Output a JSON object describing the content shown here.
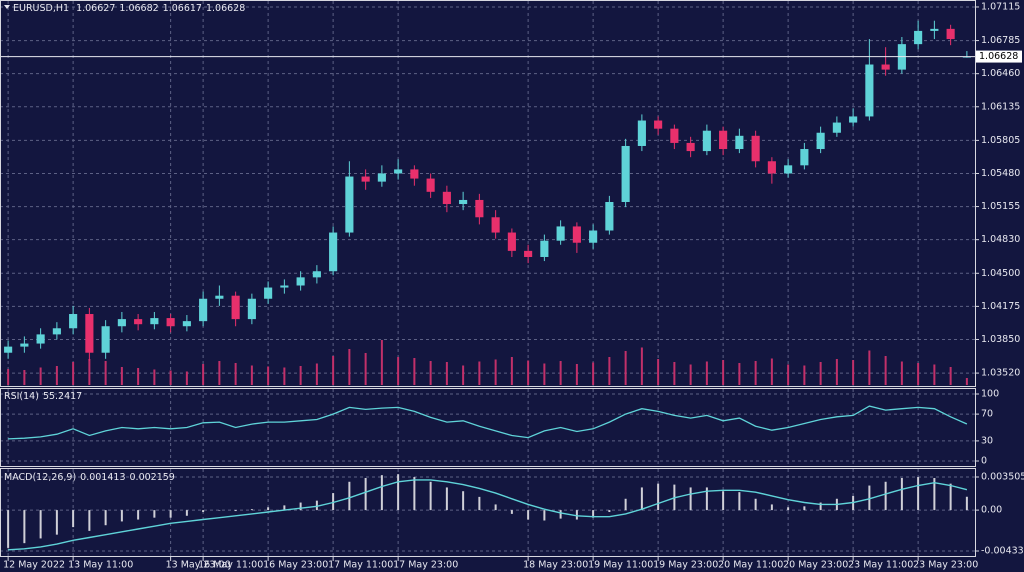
{
  "chart_data": {
    "type": "candlestick",
    "symbol": "EURUSD,H1",
    "up_color": "#5fd3d8",
    "down_color": "#e8306c",
    "volume_color": "#c2306a",
    "grid": true,
    "xlim": [
      -0.5,
      59.5
    ],
    "xticks": [
      {
        "value": 0,
        "label": "12 May 2022"
      },
      {
        "value": 4,
        "label": "13 May 11:00"
      },
      {
        "value": 10,
        "label": "13 May 23:00"
      },
      {
        "value": 12,
        "label": "16 May 11:00"
      },
      {
        "value": 16,
        "label": "16 May 23:00"
      },
      {
        "value": 20,
        "label": "17 May 11:00"
      },
      {
        "value": 24,
        "label": "17 May 23:00"
      },
      {
        "value": 32,
        "label": "18 May 23:00"
      },
      {
        "value": 36,
        "label": "19 May 11:00"
      },
      {
        "value": 40,
        "label": "19 May 23:00"
      },
      {
        "value": 44,
        "label": "20 May 11:00"
      },
      {
        "value": 48,
        "label": "20 May 23:00"
      },
      {
        "value": 52,
        "label": "23 May 11:00"
      },
      {
        "value": 56,
        "label": "23 May 23:00"
      }
    ],
    "ylim": [
      1.03403,
      1.07154
    ],
    "yticks": [
      1.07115,
      1.06785,
      {
        "value": 1.0646,
        "label": "1.06460"
      },
      1.06135,
      1.05805,
      {
        "value": 1.0548,
        "label": "1.05480"
      },
      1.05155,
      {
        "value": 1.0483,
        "label": "1.04830"
      },
      {
        "value": 1.045,
        "label": "1.04500"
      },
      1.04175,
      {
        "value": 1.0385,
        "label": "1.03850"
      },
      {
        "value": 1.0352,
        "label": "1.03520"
      }
    ],
    "candles": [
      [
        1.0372,
        1.0384,
        1.0366,
        1.0378
      ],
      [
        1.0378,
        1.0388,
        1.0372,
        1.0381
      ],
      [
        1.0381,
        1.0396,
        1.0376,
        1.039
      ],
      [
        1.039,
        1.0402,
        1.0385,
        1.0396
      ],
      [
        1.0396,
        1.0418,
        1.039,
        1.041
      ],
      [
        1.041,
        1.0416,
        1.0364,
        1.0372
      ],
      [
        1.0372,
        1.0404,
        1.0366,
        1.0398
      ],
      [
        1.0398,
        1.0412,
        1.0392,
        1.0405
      ],
      [
        1.0405,
        1.041,
        1.0394,
        1.04
      ],
      [
        1.04,
        1.0412,
        1.0395,
        1.0406
      ],
      [
        1.0406,
        1.041,
        1.0392,
        1.0398
      ],
      [
        1.0398,
        1.0409,
        1.0393,
        1.0403
      ],
      [
        1.0403,
        1.0432,
        1.0398,
        1.0425
      ],
      [
        1.0425,
        1.0438,
        1.0418,
        1.0428
      ],
      [
        1.0428,
        1.0432,
        1.0398,
        1.0405
      ],
      [
        1.0405,
        1.043,
        1.04,
        1.0425
      ],
      [
        1.0425,
        1.0442,
        1.042,
        1.0436
      ],
      [
        1.0436,
        1.0444,
        1.043,
        1.0438
      ],
      [
        1.0438,
        1.0452,
        1.0433,
        1.0446
      ],
      [
        1.0446,
        1.0458,
        1.044,
        1.0452
      ],
      [
        1.0452,
        1.0496,
        1.0448,
        1.049
      ],
      [
        1.049,
        1.056,
        1.0486,
        1.0545
      ],
      [
        1.0545,
        1.0552,
        1.0532,
        1.054
      ],
      [
        1.054,
        1.0556,
        1.0535,
        1.0548
      ],
      [
        1.0548,
        1.0562,
        1.0542,
        1.0552
      ],
      [
        1.0552,
        1.0556,
        1.0536,
        1.0543
      ],
      [
        1.0543,
        1.0548,
        1.0524,
        1.053
      ],
      [
        1.053,
        1.0536,
        1.051,
        1.0518
      ],
      [
        1.0518,
        1.053,
        1.0512,
        1.0522
      ],
      [
        1.0522,
        1.0528,
        1.0498,
        1.0505
      ],
      [
        1.0505,
        1.0512,
        1.0484,
        1.049
      ],
      [
        1.049,
        1.0494,
        1.0466,
        1.0472
      ],
      [
        1.0472,
        1.0478,
        1.046,
        1.0466
      ],
      [
        1.0466,
        1.0488,
        1.0462,
        1.0482
      ],
      [
        1.0482,
        1.0502,
        1.0478,
        1.0496
      ],
      [
        1.0496,
        1.05,
        1.047,
        1.048
      ],
      [
        1.048,
        1.0498,
        1.0474,
        1.0492
      ],
      [
        1.0492,
        1.0526,
        1.0488,
        1.052
      ],
      [
        1.052,
        1.0582,
        1.0515,
        1.0575
      ],
      [
        1.0575,
        1.0606,
        1.057,
        1.06
      ],
      [
        1.06,
        1.0604,
        1.0586,
        1.0592
      ],
      [
        1.0592,
        1.0596,
        1.0572,
        1.0578
      ],
      [
        1.0578,
        1.0584,
        1.0564,
        1.057
      ],
      [
        1.057,
        1.0596,
        1.0566,
        1.059
      ],
      [
        1.059,
        1.0594,
        1.0566,
        1.0572
      ],
      [
        1.0572,
        1.0592,
        1.0568,
        1.0585
      ],
      [
        1.0585,
        1.059,
        1.0554,
        1.056
      ],
      [
        1.056,
        1.0564,
        1.0538,
        1.0548
      ],
      [
        1.0548,
        1.0562,
        1.0544,
        1.0556
      ],
      [
        1.0556,
        1.0578,
        1.0552,
        1.0572
      ],
      [
        1.0572,
        1.0594,
        1.0568,
        1.0588
      ],
      [
        1.0588,
        1.0604,
        1.0584,
        1.0598
      ],
      [
        1.0598,
        1.0612,
        1.0594,
        1.0604
      ],
      [
        1.0604,
        1.068,
        1.06,
        1.0655
      ],
      [
        1.0655,
        1.0672,
        1.0644,
        1.065
      ],
      [
        1.065,
        1.0682,
        1.0646,
        1.0675
      ],
      [
        1.0675,
        1.0698,
        1.067,
        1.0688
      ],
      [
        1.0688,
        1.0698,
        1.068,
        1.069
      ],
      [
        1.069,
        1.0694,
        1.0674,
        1.068
      ],
      [
        1.06627,
        1.06682,
        1.06617,
        1.06628
      ]
    ],
    "volumes": [
      3200,
      3000,
      3500,
      3800,
      4600,
      5200,
      4800,
      3600,
      3400,
      3100,
      2900,
      2700,
      4200,
      4800,
      4400,
      3900,
      3700,
      3500,
      3800,
      4300,
      5800,
      7200,
      6400,
      9000,
      5600,
      5400,
      4800,
      4600,
      3900,
      4700,
      5100,
      5600,
      4900,
      4300,
      4800,
      4200,
      4500,
      5600,
      6800,
      7500,
      5200,
      4600,
      4100,
      4700,
      5000,
      4400,
      4800,
      5300,
      4100,
      3900,
      4600,
      5200,
      5000,
      6900,
      5800,
      4700,
      4400,
      4100,
      3600,
      1400
    ],
    "rsi": {
      "title": "RSI(14)",
      "color": "#5fd3d8",
      "ylim": [
        0,
        100
      ],
      "yticks": [
        100,
        70,
        30,
        0
      ],
      "values": [
        33,
        34,
        36,
        40,
        48,
        38,
        45,
        50,
        48,
        50,
        48,
        50,
        57,
        58,
        50,
        55,
        58,
        58,
        60,
        62,
        70,
        80,
        77,
        79,
        80,
        74,
        65,
        58,
        60,
        52,
        45,
        38,
        35,
        45,
        50,
        44,
        48,
        58,
        70,
        78,
        74,
        68,
        64,
        68,
        60,
        64,
        52,
        46,
        50,
        56,
        62,
        66,
        68,
        82,
        76,
        78,
        80,
        78,
        66,
        55.2417
      ]
    },
    "macd": {
      "title": "MACD(12,26,9)",
      "color": "#d0d0d8",
      "signal_color": "#5fd3d8",
      "ylim": [
        -0.00433,
        0.003505
      ],
      "yticks": [
        0.003505,
        {
          "value": 0,
          "label": "0.00"
        },
        -0.00433
      ],
      "values": [
        -0.004,
        -0.0035,
        -0.003,
        -0.0026,
        -0.0018,
        -0.0022,
        -0.0016,
        -0.0012,
        -0.001,
        -0.0008,
        -0.0008,
        -0.0006,
        -0.0002,
        0,
        -0.0001,
        0.0001,
        0.0003,
        0.0005,
        0.0008,
        0.001,
        0.0018,
        0.003,
        0.0034,
        0.0037,
        0.0038,
        0.0035,
        0.003,
        0.0024,
        0.002,
        0.0014,
        0.0006,
        -0.0004,
        -0.001,
        -0.0011,
        -0.0009,
        -0.001,
        -0.0008,
        -0.0002,
        0.0012,
        0.0024,
        0.0028,
        0.0027,
        0.0024,
        0.0024,
        0.002,
        0.0019,
        0.0012,
        0.0006,
        0.0003,
        0.0004,
        0.0008,
        0.0012,
        0.0015,
        0.0026,
        0.003,
        0.0034,
        0.0035,
        0.0034,
        0.0028,
        0.001413
      ],
      "signal": [
        -0.0042,
        -0.0041,
        -0.0039,
        -0.0036,
        -0.0032,
        -0.0029,
        -0.0026,
        -0.0023,
        -0.002,
        -0.0017,
        -0.0014,
        -0.0012,
        -0.001,
        -0.0008,
        -0.0006,
        -0.0004,
        -0.0002,
        0,
        0.0002,
        0.0004,
        0.0008,
        0.0013,
        0.0019,
        0.0025,
        0.003,
        0.0032,
        0.0032,
        0.003,
        0.0027,
        0.0023,
        0.0018,
        0.0012,
        0.0006,
        0.0001,
        -0.0003,
        -0.0006,
        -0.0007,
        -0.0007,
        -0.0004,
        0.0001,
        0.0007,
        0.0013,
        0.0017,
        0.002,
        0.0021,
        0.0021,
        0.0019,
        0.0015,
        0.0011,
        0.0008,
        0.0006,
        0.0006,
        0.0008,
        0.0012,
        0.0017,
        0.0022,
        0.0026,
        0.0029,
        0.0026,
        0.002159
      ]
    }
  }
}
